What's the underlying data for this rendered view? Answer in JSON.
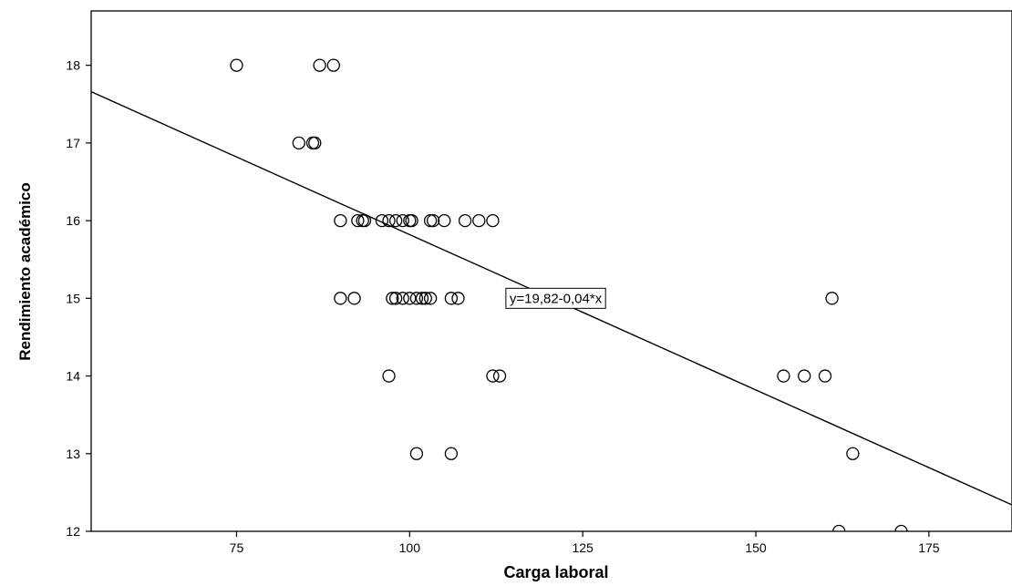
{
  "chart_data": {
    "type": "scatter",
    "title": "",
    "xlabel": "Carga laboral",
    "ylabel": "Rendimiento académico",
    "xlim": [
      54,
      187
    ],
    "ylim": [
      12,
      18.7
    ],
    "xticks": [
      75,
      100,
      125,
      150,
      175
    ],
    "yticks": [
      12,
      13,
      14,
      15,
      16,
      17,
      18
    ],
    "grid": false,
    "legend": "none",
    "colors": {
      "point_stroke": "#000000",
      "line": "#000000",
      "frame": "#000000"
    },
    "points": [
      {
        "x": 75,
        "y": 18
      },
      {
        "x": 87,
        "y": 18
      },
      {
        "x": 89,
        "y": 18
      },
      {
        "x": 84,
        "y": 17
      },
      {
        "x": 86,
        "y": 17
      },
      {
        "x": 86.3,
        "y": 17
      },
      {
        "x": 90,
        "y": 16
      },
      {
        "x": 92.5,
        "y": 16
      },
      {
        "x": 93.2,
        "y": 16
      },
      {
        "x": 93.5,
        "y": 16
      },
      {
        "x": 96,
        "y": 16
      },
      {
        "x": 97,
        "y": 16
      },
      {
        "x": 98,
        "y": 16
      },
      {
        "x": 99,
        "y": 16
      },
      {
        "x": 100,
        "y": 16
      },
      {
        "x": 100.3,
        "y": 16
      },
      {
        "x": 103,
        "y": 16
      },
      {
        "x": 103.4,
        "y": 16
      },
      {
        "x": 105,
        "y": 16
      },
      {
        "x": 108,
        "y": 16
      },
      {
        "x": 110,
        "y": 16
      },
      {
        "x": 112,
        "y": 16
      },
      {
        "x": 90,
        "y": 15
      },
      {
        "x": 92,
        "y": 15
      },
      {
        "x": 97.5,
        "y": 15
      },
      {
        "x": 98,
        "y": 15
      },
      {
        "x": 99,
        "y": 15
      },
      {
        "x": 100,
        "y": 15
      },
      {
        "x": 101,
        "y": 15
      },
      {
        "x": 101.8,
        "y": 15
      },
      {
        "x": 102.3,
        "y": 15
      },
      {
        "x": 103,
        "y": 15
      },
      {
        "x": 106,
        "y": 15
      },
      {
        "x": 107,
        "y": 15
      },
      {
        "x": 161,
        "y": 15
      },
      {
        "x": 97,
        "y": 14
      },
      {
        "x": 112,
        "y": 14
      },
      {
        "x": 113,
        "y": 14
      },
      {
        "x": 154,
        "y": 14
      },
      {
        "x": 157,
        "y": 14
      },
      {
        "x": 160,
        "y": 14
      },
      {
        "x": 101,
        "y": 13
      },
      {
        "x": 106,
        "y": 13
      },
      {
        "x": 164,
        "y": 13
      },
      {
        "x": 162,
        "y": 12
      },
      {
        "x": 171,
        "y": 12
      }
    ],
    "fit_line": {
      "intercept": 19.82,
      "slope": -0.04
    },
    "annotations": [
      {
        "text": "y=19,82-0,04*x",
        "x": 113.9,
        "y": 15
      }
    ]
  }
}
